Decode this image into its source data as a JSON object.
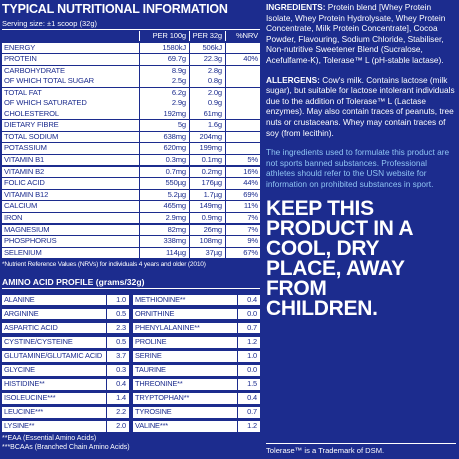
{
  "nutrition": {
    "title": "TYPICAL NUTRITIONAL INFORMATION",
    "serving": "Serving size: ±1 scoop (32g)",
    "headers": [
      "PER 100g",
      "PER 32g",
      "%NRV"
    ],
    "rows": [
      {
        "name": [
          "ENERGY"
        ],
        "per100": [
          "1580kJ"
        ],
        "per32": [
          "506kJ"
        ]
      },
      {
        "name": [
          "PROTEIN"
        ],
        "per100": [
          "69.7g"
        ],
        "per32": [
          "22.3g"
        ],
        "nrv": "40%"
      },
      {
        "name": [
          "CARBOHYDRATE",
          "OF WHICH TOTAL SUGAR"
        ],
        "per100": [
          "8.9g",
          "2.5g"
        ],
        "per32": [
          "2.8g",
          "0.8g"
        ]
      },
      {
        "name": [
          "TOTAL FAT",
          "OF WHICH SATURATED",
          "CHOLESTEROL"
        ],
        "per100": [
          "6.2g",
          "2.9g",
          "192mg"
        ],
        "per32": [
          "2.0g",
          "0.9g",
          "61mg"
        ]
      },
      {
        "name": [
          "DIETARY FIBRE"
        ],
        "per100": [
          "5g"
        ],
        "per32": [
          "1.6g"
        ]
      },
      {
        "name": [
          "TOTAL SODIUM"
        ],
        "per100": [
          "638mg"
        ],
        "per32": [
          "204mg"
        ]
      },
      {
        "name": [
          "POTASSIUM"
        ],
        "per100": [
          "620mg"
        ],
        "per32": [
          "199mg"
        ]
      },
      {
        "name": [
          "VITAMIN B1"
        ],
        "per100": [
          "0.3mg"
        ],
        "per32": [
          "0.1mg"
        ],
        "nrv": "5%"
      },
      {
        "name": [
          "VITAMIN B2"
        ],
        "per100": [
          "0.7mg"
        ],
        "per32": [
          "0.2mg"
        ],
        "nrv": "16%"
      },
      {
        "name": [
          "FOLIC ACID"
        ],
        "per100": [
          "550µg"
        ],
        "per32": [
          "176µg"
        ],
        "nrv": "44%"
      },
      {
        "name": [
          "VITAMIN B12"
        ],
        "per100": [
          "5.2µg"
        ],
        "per32": [
          "1.7µg"
        ],
        "nrv": "69%"
      },
      {
        "name": [
          "CALCIUM"
        ],
        "per100": [
          "465mg"
        ],
        "per32": [
          "149mg"
        ],
        "nrv": "11%"
      },
      {
        "name": [
          "IRON"
        ],
        "per100": [
          "2.9mg"
        ],
        "per32": [
          "0.9mg"
        ],
        "nrv": "7%"
      },
      {
        "name": [
          "MAGNESIUM"
        ],
        "per100": [
          "82mg"
        ],
        "per32": [
          "26mg"
        ],
        "nrv": "7%"
      },
      {
        "name": [
          "PHOSPHORUS"
        ],
        "per100": [
          "338mg"
        ],
        "per32": [
          "108mg"
        ],
        "nrv": "9%"
      },
      {
        "name": [
          "SELENIUM"
        ],
        "per100": [
          "114µg"
        ],
        "per32": [
          "37µg"
        ],
        "nrv": "67%"
      }
    ],
    "footnote": "*Nutrient Reference Values (NRVs) for individuals 4 years and older (2010)"
  },
  "amino": {
    "title": "AMINO ACID PROFILE (grams/32g)",
    "left": [
      {
        "name": "ALANINE",
        "value": "1.0"
      },
      {
        "name": "ARGININE",
        "value": "0.5"
      },
      {
        "name": "ASPARTIC ACID",
        "value": "2.3"
      },
      {
        "name": "CYSTINE/CYSTEINE",
        "value": "0.5"
      },
      {
        "name": "GLUTAMINE/GLUTAMIC ACID",
        "value": "3.7"
      },
      {
        "name": "GLYCINE",
        "value": "0.3"
      },
      {
        "name": "HISTIDINE**",
        "value": "0.4"
      },
      {
        "name": "ISOLEUCINE***",
        "value": "1.4"
      },
      {
        "name": "LEUCINE***",
        "value": "2.2"
      },
      {
        "name": "LYSINE**",
        "value": "2.0"
      }
    ],
    "right": [
      {
        "name": "METHIONINE**",
        "value": "0.4"
      },
      {
        "name": "ORNITHINE",
        "value": "0.0"
      },
      {
        "name": "PHENYLALANINE**",
        "value": "0.7"
      },
      {
        "name": "PROLINE",
        "value": "1.2"
      },
      {
        "name": "SERINE",
        "value": "1.0"
      },
      {
        "name": "TAURINE",
        "value": "0.0"
      },
      {
        "name": "THREONINE**",
        "value": "1.5"
      },
      {
        "name": "TRYPTOPHAN**",
        "value": "0.4"
      },
      {
        "name": "TYROSINE",
        "value": "0.7"
      },
      {
        "name": "VALINE***",
        "value": "1.2"
      }
    ],
    "notes": [
      "**EAA (Essential Amino Acids)",
      "***BCAAs (Branched Chain Amino Acids)"
    ]
  },
  "side": {
    "ingredients_label": "INGREDIENTS:",
    "ingredients": "Protein blend [Whey Protein Isolate, Whey Protein Hydrolysate, Whey Protein Concentrate, Milk Protein Concentrate], Cocoa Powder, Flavouring, Sodium Chloride, Stabiliser, Non-nutritive Sweetener Blend (Sucralose, Acefulfame-K), Tolerase™ L (pH-stable lactase).",
    "allergens_label": "ALLERGENS:",
    "allergens": "Cow's milk. Contains lactose (milk sugar), but suitable for lactose intolerant individuals due to the addition of Tolerase™ L (Lactase enzymes). May also contain traces of peanuts, tree nuts or crustaceans. Whey may contain traces of soy (from lecithin).",
    "notice": "The ingredients used to formulate this product are not sports banned substances. Professional athletes should refer to the USN website for information on prohibited substances in sport.",
    "storage": "KEEP THIS PRODUCT IN A COOL, DRY PLACE, AWAY FROM CHILDREN.",
    "trademark": "Tolerase™ is a Trademark of DSM."
  }
}
